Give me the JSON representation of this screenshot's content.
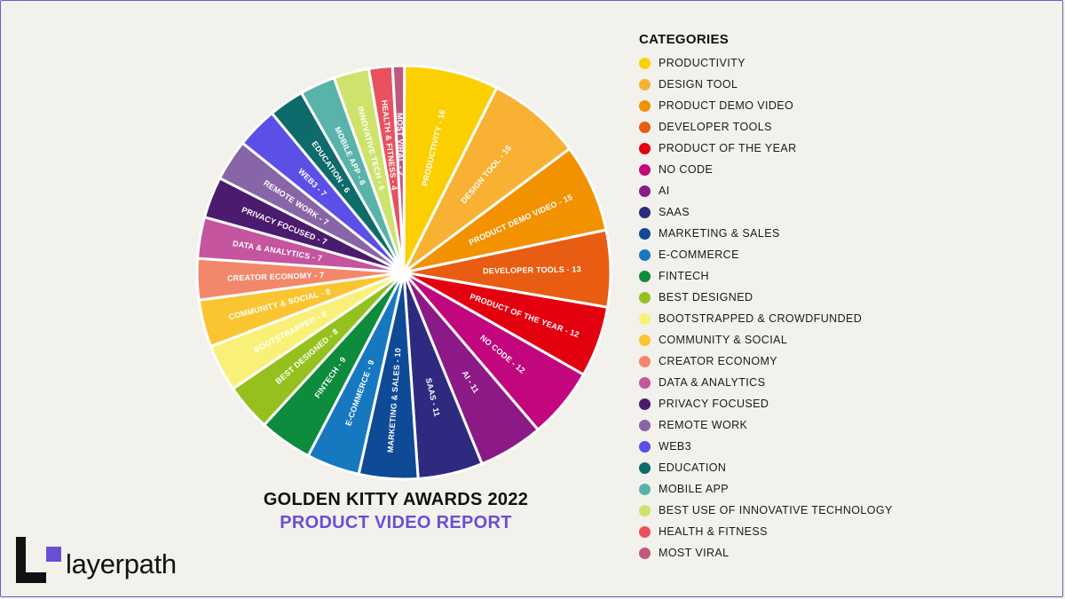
{
  "chart_data": {
    "type": "pie",
    "title": "GOLDEN KITTY AWARDS 2022",
    "subtitle": "PRODUCT VIDEO REPORT",
    "legend_title": "CATEGORIES",
    "legend_position": "right",
    "slices": [
      {
        "label": "PRODUCTIVITY",
        "slice_label": "PRODUCTIVITY - 16",
        "value": 16,
        "color": "#fcd000"
      },
      {
        "label": "DESIGN TOOL",
        "slice_label": "DESIGN TOOL - 16",
        "value": 16,
        "color": "#f8b133"
      },
      {
        "label": "PRODUCT DEMO VIDEO",
        "slice_label": "PRODUCT DEMO VIDEO - 15",
        "value": 15,
        "color": "#f39200"
      },
      {
        "label": "DEVELOPER TOOLS",
        "slice_label": "DEVELOPER TOOLS - 13",
        "value": 13,
        "color": "#e85d12"
      },
      {
        "label": "PRODUCT OF THE YEAR",
        "slice_label": "PRODUCT OF THE YEAR - 12",
        "value": 12,
        "color": "#e3000f"
      },
      {
        "label": "NO CODE",
        "slice_label": "NO CODE - 12",
        "value": 12,
        "color": "#c2077e"
      },
      {
        "label": "AI",
        "slice_label": "AI - 11",
        "value": 11,
        "color": "#8b1a87"
      },
      {
        "label": "SAAS",
        "slice_label": "SAAS - 11",
        "value": 11,
        "color": "#2e2a7f"
      },
      {
        "label": "MARKETING & SALES",
        "slice_label": "MARKETING & SALES - 10",
        "value": 10,
        "color": "#0e4a96"
      },
      {
        "label": "E-COMMERCE",
        "slice_label": "E-COMMERCE - 9",
        "value": 9,
        "color": "#1679c0"
      },
      {
        "label": "FINTECH",
        "slice_label": "FINTECH - 9",
        "value": 9,
        "color": "#0c8c3c"
      },
      {
        "label": "BEST DESIGNED",
        "slice_label": "BEST DESIGNED - 8",
        "value": 8,
        "color": "#95c11f"
      },
      {
        "label": "BOOTSTRAPPED & CROWDFUNDED",
        "slice_label": "BOOTSTRAPPED - 8",
        "value": 8,
        "color": "#f9f07a"
      },
      {
        "label": "COMMUNITY & SOCIAL",
        "slice_label": "COMMUNITY & SOCIAL - 8",
        "value": 8,
        "color": "#fbc531"
      },
      {
        "label": "CREATOR ECONOMY",
        "slice_label": "CREATOR ECONOMY - 7",
        "value": 7,
        "color": "#f3876b"
      },
      {
        "label": "DATA & ANALYTICS",
        "slice_label": "DATA & ANALYTICS - 7",
        "value": 7,
        "color": "#c4559e"
      },
      {
        "label": "PRIVACY FOCUSED",
        "slice_label": "PRIVACY FOCUSED - 7",
        "value": 7,
        "color": "#4b1b6e"
      },
      {
        "label": "REMOTE WORK",
        "slice_label": "REMOTE WORK - 7",
        "value": 7,
        "color": "#8865a7"
      },
      {
        "label": "WEB3",
        "slice_label": "WEB3 - 7",
        "value": 7,
        "color": "#5b4fe8"
      },
      {
        "label": "EDUCATION",
        "slice_label": "EDUCATION - 6",
        "value": 6,
        "color": "#0e6b6b"
      },
      {
        "label": "MOBILE APP",
        "slice_label": "MOBILE APP - 6",
        "value": 6,
        "color": "#59b3a9"
      },
      {
        "label": "BEST USE OF INNOVATIVE TECHNOLOGY",
        "slice_label": "INNOVATIVE TECH - 6",
        "value": 6,
        "color": "#cde36b"
      },
      {
        "label": "HEALTH & FITNESS",
        "slice_label": "HEALTH & FITNESS - 4",
        "value": 4,
        "color": "#e8525f"
      },
      {
        "label": "MOST VIRAL",
        "slice_label": "MOST VIRAL - 2",
        "value": 2,
        "color": "#c0577e"
      }
    ]
  },
  "brand": {
    "name": "layerpath",
    "mark_color": "#111111",
    "accent": "#6a4fd6"
  }
}
